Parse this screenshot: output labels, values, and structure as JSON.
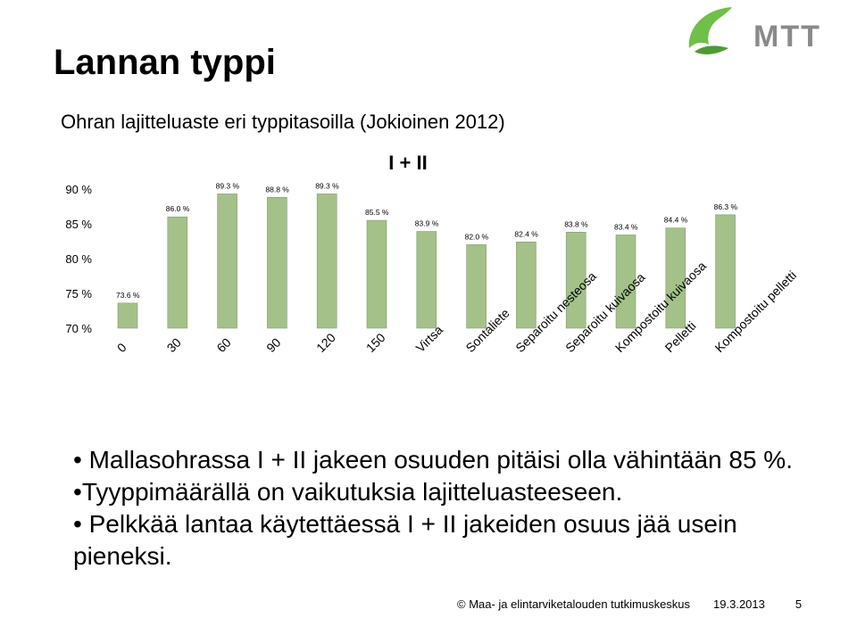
{
  "slide": {
    "title": "Lannan typpi",
    "logo_text": "MTT",
    "bullets": [
      "Mallasohrassa I + II jakeen osuuden pitäisi olla vähintään 85 %.",
      "Tyyppimäärällä on vaikutuksia lajitteluasteeseen.",
      "Pelkkää lantaa käytettäessä I + II jakeiden osuus jää usein pieneksi."
    ],
    "footer": {
      "organization": "© Maa- ja elintarviketalouden tutkimuskeskus",
      "date": "19.3.2013",
      "page": "5"
    }
  },
  "colors": {
    "bar": "#a3c189",
    "bar_border": "#7f9f6a",
    "logo_green": "#6fbf4a",
    "logo_text": "#8a8a8a"
  },
  "chart_data": {
    "type": "bar",
    "title": "Ohran lajitteluaste eri typpitasoilla (Jokioinen 2012)",
    "series": [
      {
        "name": "I + II",
        "values": [
          73.6,
          86.0,
          89.3,
          88.8,
          89.3,
          85.5,
          83.9,
          82.0,
          82.4,
          83.8,
          83.4,
          84.4,
          86.3
        ]
      }
    ],
    "categories": [
      "0",
      "30",
      "60",
      "90",
      "120",
      "150",
      "Virtsa",
      "Sontaliete",
      "Separoitu nesteosa",
      "Separoitu kuivaosa",
      "Kompostoitu kuivaosa",
      "Pelletti",
      "Kompostoitu pelletti"
    ],
    "data_labels": [
      "73.6 %",
      "86.0 %",
      "89.3 %",
      "88.8 %",
      "89.3 %",
      "85.5 %",
      "83.9 %",
      "82.0 %",
      "82.4 %",
      "83.8 %",
      "83.4 %",
      "84.4 %",
      "86.3 %"
    ],
    "ylim": [
      70,
      90
    ],
    "yticks": [
      "70 %",
      "75 %",
      "80 %",
      "85 %",
      "90 %"
    ],
    "grid": false,
    "legend": "top-center"
  }
}
